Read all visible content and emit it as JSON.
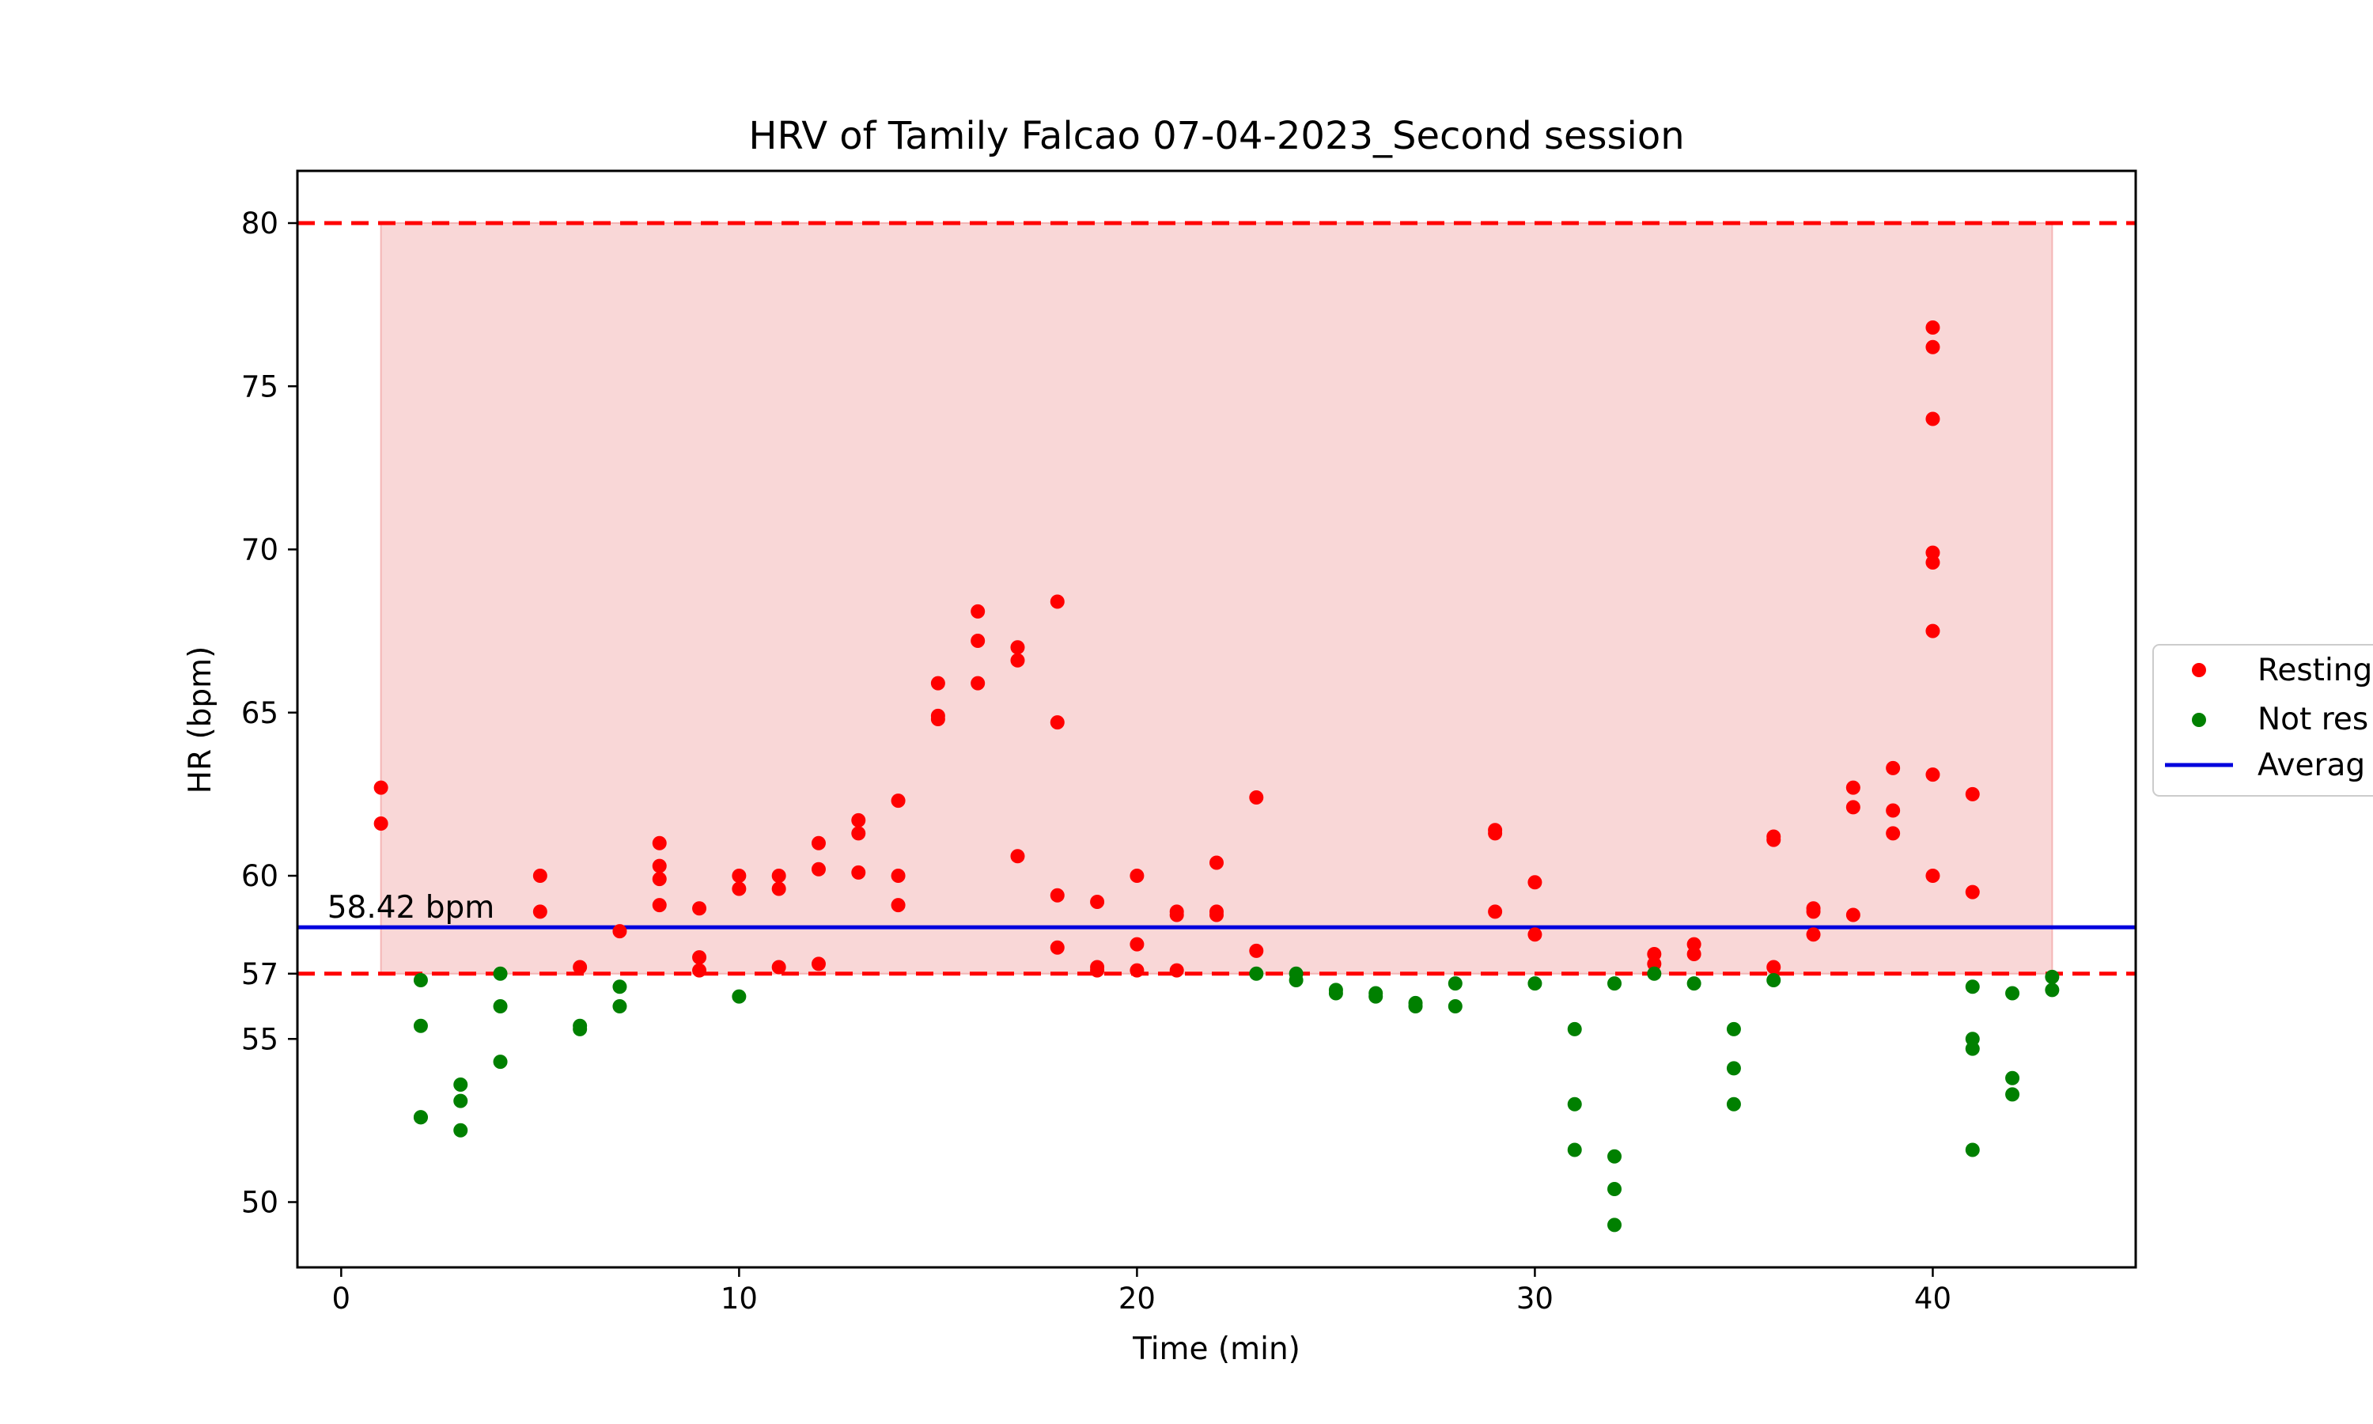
{
  "chart_data": {
    "type": "scatter",
    "title": "HRV of Tamily Falcao 07-04-2023_Second session",
    "xlabel": "Time (min)",
    "ylabel": "HR (bpm)",
    "xlim": [
      -1.1,
      45.1
    ],
    "ylim": [
      48.0,
      81.6
    ],
    "xticks": [
      0,
      10,
      20,
      30,
      40
    ],
    "yticks": [
      50,
      55,
      57,
      60,
      65,
      70,
      75,
      80
    ],
    "grid": false,
    "legend_position": "right",
    "shaded_band": {
      "x": [
        1,
        43
      ],
      "y": [
        57,
        80
      ],
      "color": "#f8d0d0"
    },
    "threshold_lines": [
      {
        "y": 80,
        "color": "#ff0000",
        "style": "dashed"
      },
      {
        "y": 57,
        "color": "#ff0000",
        "style": "dashed"
      }
    ],
    "average_line": {
      "y": 58.42,
      "color": "#0000dd",
      "label": "58.42 bpm"
    },
    "legend": [
      "Resting",
      "Not res",
      "Averag"
    ],
    "series": [
      {
        "name": "Resting",
        "color": "#ff0000",
        "points": [
          [
            1,
            62.7
          ],
          [
            1,
            61.6
          ],
          [
            5,
            60.0
          ],
          [
            5,
            58.9
          ],
          [
            6,
            57.2
          ],
          [
            7,
            58.3
          ],
          [
            8,
            61.0
          ],
          [
            8,
            60.3
          ],
          [
            8,
            59.9
          ],
          [
            8,
            59.1
          ],
          [
            9,
            59.0
          ],
          [
            9,
            57.5
          ],
          [
            9,
            57.1
          ],
          [
            10,
            60.0
          ],
          [
            10,
            59.6
          ],
          [
            11,
            60.0
          ],
          [
            11,
            59.6
          ],
          [
            11,
            57.2
          ],
          [
            12,
            61.0
          ],
          [
            12,
            60.2
          ],
          [
            12,
            57.3
          ],
          [
            13,
            61.7
          ],
          [
            13,
            61.3
          ],
          [
            13,
            60.1
          ],
          [
            14,
            62.3
          ],
          [
            14,
            60.0
          ],
          [
            14,
            59.1
          ],
          [
            15,
            65.9
          ],
          [
            15,
            64.9
          ],
          [
            15,
            64.8
          ],
          [
            16,
            68.1
          ],
          [
            16,
            67.2
          ],
          [
            16,
            65.9
          ],
          [
            17,
            67.0
          ],
          [
            17,
            66.6
          ],
          [
            17,
            60.6
          ],
          [
            18,
            68.4
          ],
          [
            18,
            64.7
          ],
          [
            18,
            59.4
          ],
          [
            18,
            57.8
          ],
          [
            19,
            59.2
          ],
          [
            19,
            57.2
          ],
          [
            19,
            57.1
          ],
          [
            20,
            60.0
          ],
          [
            20,
            57.9
          ],
          [
            20,
            57.1
          ],
          [
            21,
            58.9
          ],
          [
            21,
            58.8
          ],
          [
            21,
            57.1
          ],
          [
            22,
            60.4
          ],
          [
            22,
            58.9
          ],
          [
            22,
            58.8
          ],
          [
            23,
            62.4
          ],
          [
            23,
            57.7
          ],
          [
            29,
            61.4
          ],
          [
            29,
            61.3
          ],
          [
            29,
            58.9
          ],
          [
            30,
            59.8
          ],
          [
            30,
            58.2
          ],
          [
            33,
            57.6
          ],
          [
            33,
            57.3
          ],
          [
            34,
            57.9
          ],
          [
            34,
            57.6
          ],
          [
            36,
            61.2
          ],
          [
            36,
            61.1
          ],
          [
            36,
            57.2
          ],
          [
            37,
            59.0
          ],
          [
            37,
            58.9
          ],
          [
            37,
            58.2
          ],
          [
            38,
            62.7
          ],
          [
            38,
            62.1
          ],
          [
            38,
            58.8
          ],
          [
            39,
            63.3
          ],
          [
            39,
            62.0
          ],
          [
            39,
            61.3
          ],
          [
            40,
            76.8
          ],
          [
            40,
            76.2
          ],
          [
            40,
            74.0
          ],
          [
            40,
            69.9
          ],
          [
            40,
            69.6
          ],
          [
            40,
            67.5
          ],
          [
            40,
            63.1
          ],
          [
            40,
            60.0
          ],
          [
            41,
            62.5
          ],
          [
            41,
            59.5
          ]
        ]
      },
      {
        "name": "Not res",
        "color": "#008000",
        "points": [
          [
            2,
            56.8
          ],
          [
            2,
            55.4
          ],
          [
            2,
            52.6
          ],
          [
            2,
            52.6
          ],
          [
            3,
            53.6
          ],
          [
            3,
            53.1
          ],
          [
            3,
            52.2
          ],
          [
            4,
            57.0
          ],
          [
            4,
            56.0
          ],
          [
            4,
            54.3
          ],
          [
            6,
            55.4
          ],
          [
            6,
            55.3
          ],
          [
            7,
            56.6
          ],
          [
            7,
            56.0
          ],
          [
            10,
            56.3
          ],
          [
            23,
            57.0
          ],
          [
            24,
            57.0
          ],
          [
            24,
            56.8
          ],
          [
            25,
            56.5
          ],
          [
            25,
            56.4
          ],
          [
            26,
            56.4
          ],
          [
            26,
            56.3
          ],
          [
            27,
            56.1
          ],
          [
            27,
            56.0
          ],
          [
            28,
            56.7
          ],
          [
            28,
            56.0
          ],
          [
            30,
            56.7
          ],
          [
            31,
            55.3
          ],
          [
            31,
            53.0
          ],
          [
            31,
            51.6
          ],
          [
            32,
            56.7
          ],
          [
            32,
            51.4
          ],
          [
            32,
            50.4
          ],
          [
            32,
            49.3
          ],
          [
            33,
            57.0
          ],
          [
            34,
            56.7
          ],
          [
            35,
            55.3
          ],
          [
            35,
            54.1
          ],
          [
            35,
            53.0
          ],
          [
            36,
            56.8
          ],
          [
            41,
            56.6
          ],
          [
            41,
            55.0
          ],
          [
            41,
            54.7
          ],
          [
            41,
            51.6
          ],
          [
            42,
            56.4
          ],
          [
            42,
            53.8
          ],
          [
            42,
            53.3
          ],
          [
            43,
            56.9
          ],
          [
            43,
            56.5
          ]
        ]
      },
      {
        "name": "Averag",
        "color": "#0000dd",
        "line_y": 58.42
      }
    ]
  }
}
